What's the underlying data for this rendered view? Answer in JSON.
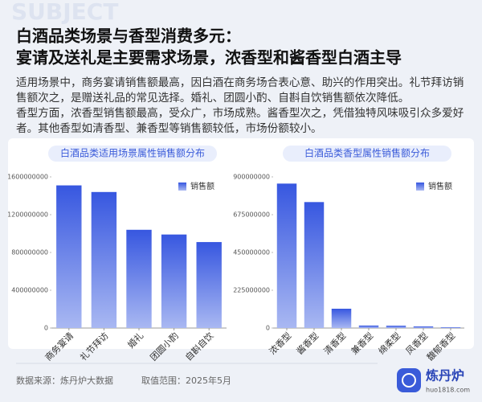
{
  "watermark": "SUBJECT",
  "header": {
    "title_lines": [
      "白酒品类场景与香型消费多元：",
      "宴请及送礼是主要需求场景，浓香型和酱香型白酒主导"
    ]
  },
  "body_lines": [
    "适用场景中，商务宴请销售额最高，因白酒在商务场合表心意、助兴的作用突出。礼节拜访销",
    "售额次之，是赠送礼品的常见选择。婚礼、团圆小酌、自斟自饮销售额依次降低。",
    "香型方面，浓香型销售额最高，受众广，市场成熟。酱香型次之，凭借独特风味吸引众多爱好",
    "者。其他香型如清香型、兼香型等销售额较低，市场份额较小。"
  ],
  "chart_data": [
    {
      "type": "bar",
      "title": "白酒品类适用场景属性销售额分布",
      "categories": [
        "商务宴请",
        "礼节拜访",
        "婚礼",
        "团圆小酌",
        "自斟自饮"
      ],
      "series": [
        {
          "name": "销售额",
          "color": "#3757e0",
          "values": [
            1510000000,
            1440000000,
            1040000000,
            990000000,
            910000000
          ]
        }
      ],
      "ylim": [
        0,
        1600000000
      ],
      "yticks": [
        0,
        400000000,
        800000000,
        1200000000,
        1600000000
      ],
      "grid": false,
      "legend": "upper right"
    },
    {
      "type": "bar",
      "title": "白酒品类香型属性销售额分布",
      "categories": [
        "浓香型",
        "酱香型",
        "清香型",
        "兼香型",
        "绵柔型",
        "凤香型",
        "馥郁香型"
      ],
      "series": [
        {
          "name": "销售额",
          "color": "#3757e0",
          "values": [
            860000000,
            750000000,
            115000000,
            15000000,
            14000000,
            10000000,
            5000000
          ]
        }
      ],
      "ylim": [
        0,
        900000000
      ],
      "yticks": [
        0,
        225000000,
        450000000,
        675000000,
        900000000
      ],
      "grid": false,
      "legend": "upper right"
    }
  ],
  "footer": {
    "source": "数据来源：炼丹炉大数据",
    "range": "取值范围：2025年5月",
    "logo": "炼丹炉",
    "url": "huo1818.com"
  }
}
